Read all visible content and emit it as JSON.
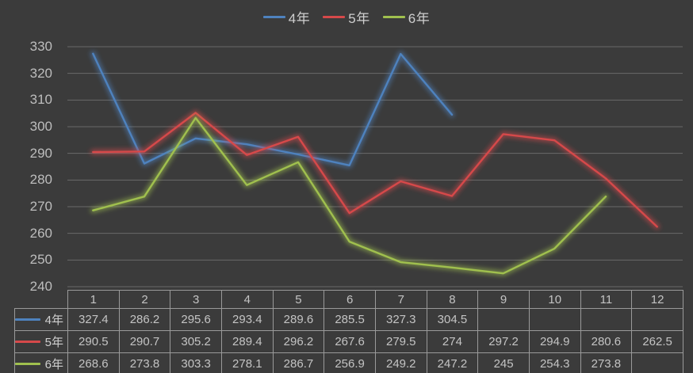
{
  "chart_data": {
    "type": "line",
    "title": "",
    "xlabel": "",
    "ylabel": "",
    "x": [
      1,
      2,
      3,
      4,
      5,
      6,
      7,
      8,
      9,
      10,
      11,
      12
    ],
    "series": [
      {
        "name": "4年",
        "color": "#4E82BE",
        "values": [
          327.4,
          286.2,
          295.6,
          293.4,
          289.6,
          285.5,
          327.3,
          304.5,
          null,
          null,
          null,
          null
        ]
      },
      {
        "name": "5年",
        "color": "#D6494A",
        "values": [
          290.5,
          290.7,
          305.2,
          289.4,
          296.2,
          267.6,
          279.5,
          274,
          297.2,
          294.9,
          280.6,
          262.5
        ]
      },
      {
        "name": "6年",
        "color": "#A0C04E",
        "values": [
          268.6,
          273.8,
          303.3,
          278.1,
          286.7,
          256.9,
          249.2,
          247.2,
          245,
          254.3,
          273.8,
          null
        ]
      }
    ],
    "ylim": [
      240,
      330
    ],
    "ytick_step": 10,
    "yticks": [
      330,
      320,
      310,
      300,
      290,
      280,
      270,
      260,
      250,
      240
    ],
    "grid": true,
    "legend_position": "top",
    "data_table_shown": true
  },
  "colors": {
    "background": "#3B3B3B",
    "gridline": "#6A6A6A",
    "text": "#C4C4C4",
    "table_border": "#9A9A9A"
  }
}
